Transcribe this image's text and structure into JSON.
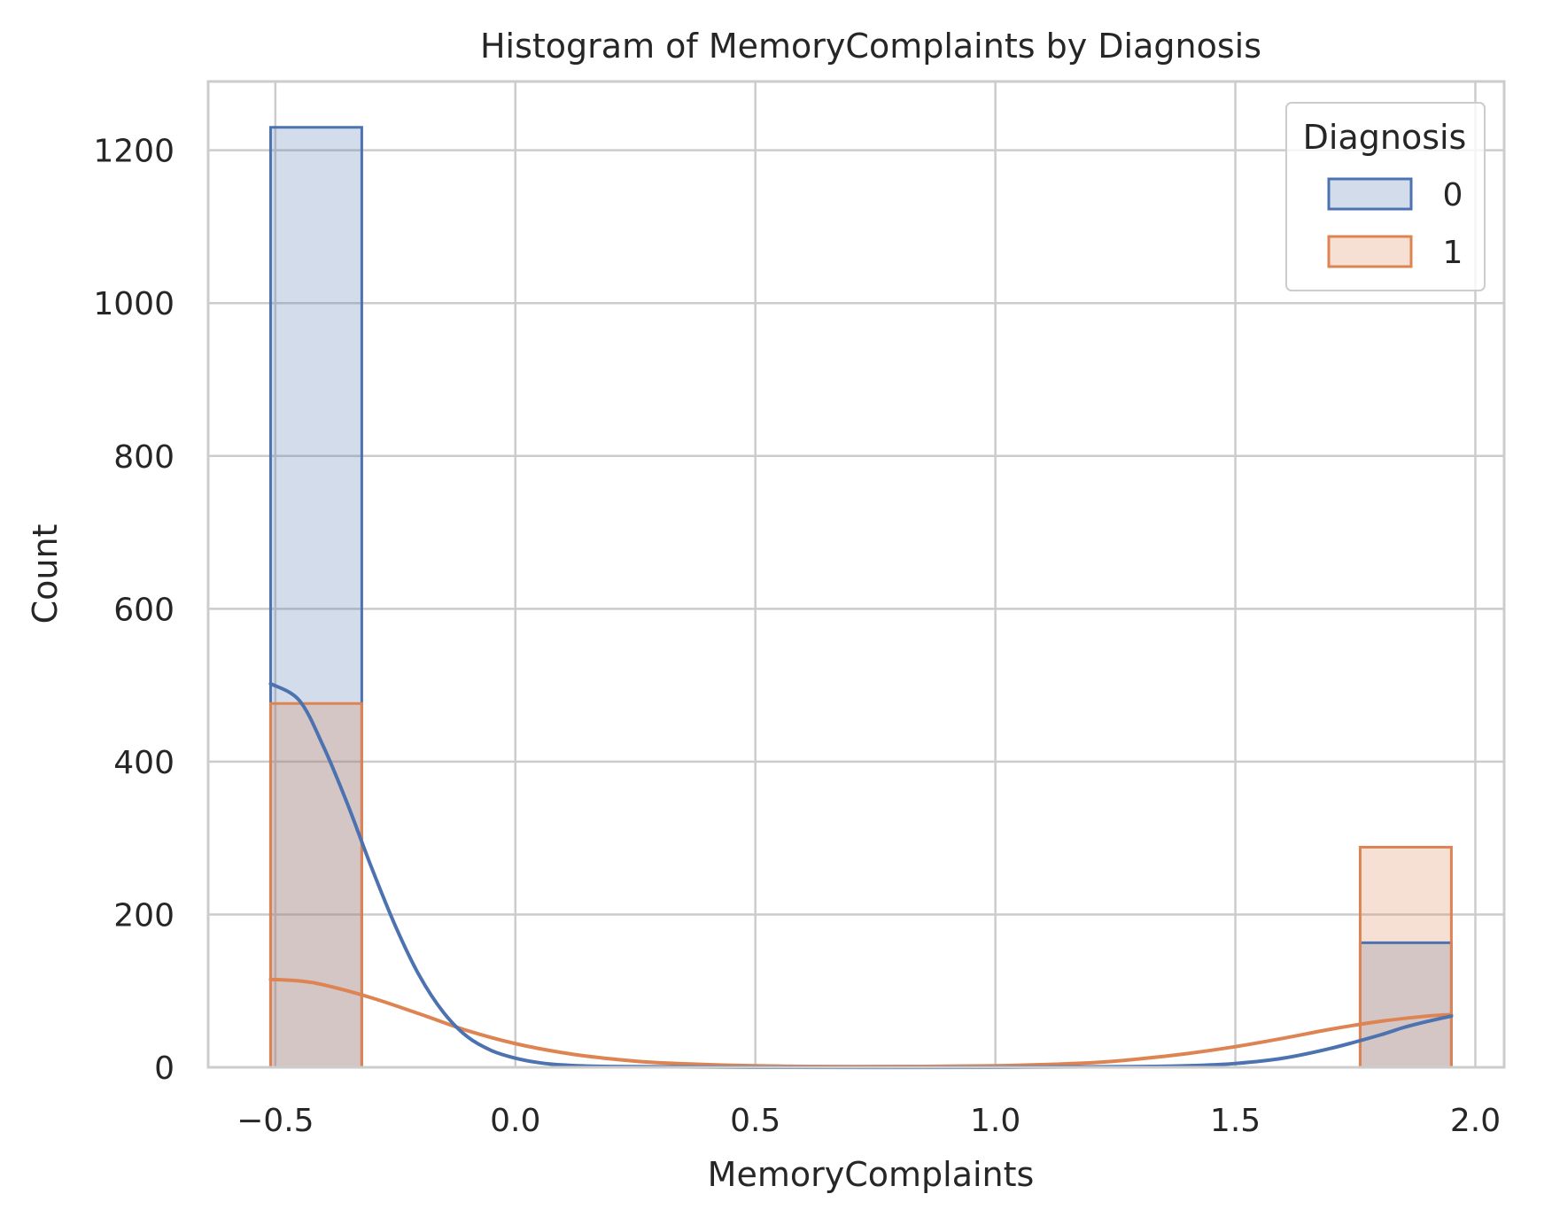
{
  "chart_data": {
    "type": "histogram",
    "title": "Histogram of MemoryComplaints by Diagnosis",
    "xlabel": "MemoryComplaints",
    "ylabel": "Count",
    "xlim": [
      -0.64,
      2.06
    ],
    "ylim": [
      0,
      1290
    ],
    "x_ticks": [
      -0.5,
      0.0,
      0.5,
      1.0,
      1.5,
      2.0
    ],
    "x_tick_labels": [
      "−0.5",
      "0.0",
      "0.5",
      "1.0",
      "1.5",
      "2.0"
    ],
    "y_ticks": [
      0,
      200,
      400,
      600,
      800,
      1000,
      1200
    ],
    "y_tick_labels": [
      "0",
      "200",
      "400",
      "600",
      "800",
      "1000",
      "1200"
    ],
    "grid": true,
    "legend": {
      "title": "Diagnosis",
      "placement": "top-right"
    },
    "series": [
      {
        "name": "0",
        "color": "#4c72b0",
        "bins": [
          {
            "x0": -0.51,
            "x1": -0.32,
            "count": 1230
          },
          {
            "x0": 1.76,
            "x1": 1.95,
            "count": 163
          }
        ],
        "kde": {
          "x": [
            -0.51,
            -0.45,
            -0.4,
            -0.35,
            -0.3,
            -0.25,
            -0.2,
            -0.15,
            -0.1,
            -0.05,
            0.0,
            0.05,
            0.1,
            0.2,
            0.5,
            1.0,
            1.3,
            1.4,
            1.5,
            1.6,
            1.7,
            1.8,
            1.85,
            1.9,
            1.95
          ],
          "y": [
            502,
            480,
            420,
            345,
            262,
            185,
            120,
            72,
            40,
            22,
            12,
            6,
            3,
            1,
            0,
            0,
            1,
            2,
            5,
            12,
            25,
            42,
            52,
            60,
            67
          ]
        }
      },
      {
        "name": "1",
        "color": "#dd8452",
        "bins": [
          {
            "x0": -0.51,
            "x1": -0.32,
            "count": 476
          },
          {
            "x0": 1.76,
            "x1": 1.95,
            "count": 288
          }
        ],
        "kde": {
          "x": [
            -0.51,
            -0.45,
            -0.4,
            -0.3,
            -0.2,
            -0.1,
            0.0,
            0.1,
            0.2,
            0.3,
            0.5,
            0.7,
            1.0,
            1.2,
            1.3,
            1.4,
            1.5,
            1.6,
            1.7,
            1.8,
            1.9,
            1.95
          ],
          "y": [
            115,
            113,
            108,
            91,
            70,
            48,
            31,
            19,
            11,
            6,
            2,
            1,
            2,
            6,
            11,
            18,
            27,
            38,
            50,
            60,
            67,
            69
          ]
        }
      }
    ]
  }
}
